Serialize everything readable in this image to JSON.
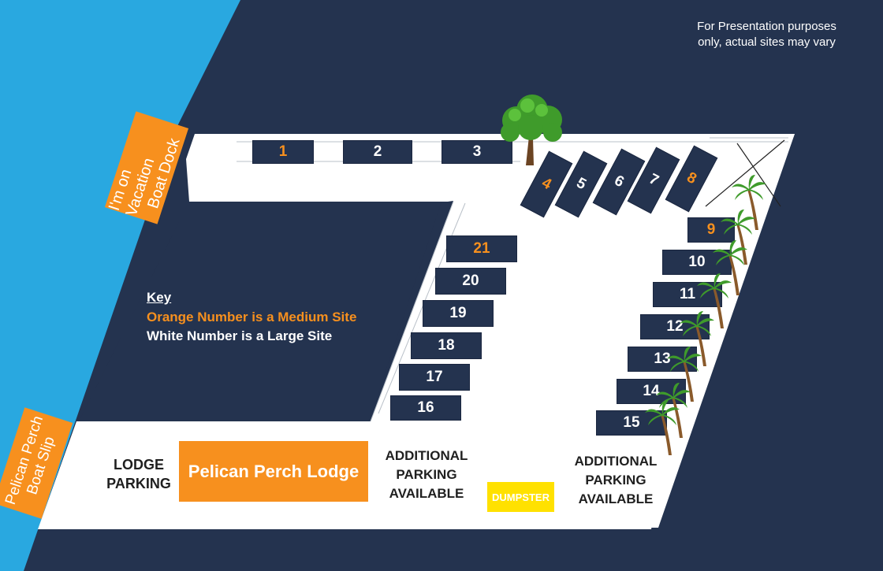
{
  "colors": {
    "water": "#29a8e0",
    "land": "#24334f",
    "road": "#ffffff",
    "medium": "#f7901e",
    "large": "#ffffff",
    "dumpster": "#ffe100"
  },
  "disclaimer": [
    "For Presentation purposes",
    "only, actual sites may vary"
  ],
  "docks": {
    "vacation": [
      "I'm on Vacation",
      "Boat Dock"
    ],
    "pelican": [
      "Pelican Perch",
      "Boat Slip"
    ]
  },
  "key": {
    "title": "Key",
    "medium": "Orange Number is a Medium Site",
    "large": "White Number is a Large Site"
  },
  "sites": [
    {
      "n": "1",
      "size": "medium"
    },
    {
      "n": "2",
      "size": "large"
    },
    {
      "n": "3",
      "size": "large"
    },
    {
      "n": "4",
      "size": "medium"
    },
    {
      "n": "5",
      "size": "large"
    },
    {
      "n": "6",
      "size": "large"
    },
    {
      "n": "7",
      "size": "large"
    },
    {
      "n": "8",
      "size": "medium"
    },
    {
      "n": "9",
      "size": "medium"
    },
    {
      "n": "10",
      "size": "large"
    },
    {
      "n": "11",
      "size": "large"
    },
    {
      "n": "12",
      "size": "large"
    },
    {
      "n": "13",
      "size": "large"
    },
    {
      "n": "14",
      "size": "large"
    },
    {
      "n": "15",
      "size": "large"
    },
    {
      "n": "16",
      "size": "large"
    },
    {
      "n": "17",
      "size": "large"
    },
    {
      "n": "18",
      "size": "large"
    },
    {
      "n": "19",
      "size": "large"
    },
    {
      "n": "20",
      "size": "large"
    },
    {
      "n": "21",
      "size": "medium"
    }
  ],
  "labels": {
    "lodge_parking": [
      "LODGE",
      "PARKING"
    ],
    "lodge": "Pelican Perch Lodge",
    "additional_left": [
      "ADDITIONAL",
      "PARKING",
      "AVAILABLE"
    ],
    "additional_right": [
      "ADDITIONAL",
      "PARKING",
      "AVAILABLE"
    ],
    "dumpster": "DUMPSTER"
  },
  "icons": {
    "tree": "tree-icon",
    "palm": "palm-tree-icon"
  }
}
